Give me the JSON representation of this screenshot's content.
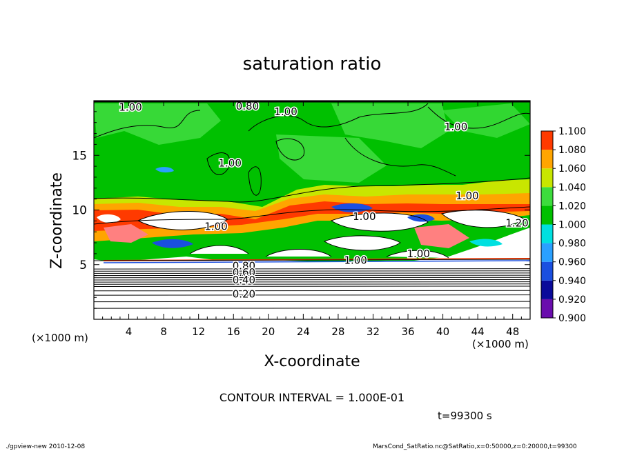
{
  "chart_data": {
    "type": "heatmap",
    "title": "saturation ratio",
    "xlabel": "X-coordinate",
    "ylabel": "Z-coordinate",
    "x_units": "(×1000 m)",
    "y_units": "(×1000 m)",
    "xlim": [
      0,
      50
    ],
    "ylim": [
      0,
      20
    ],
    "x_ticks": [
      4,
      8,
      12,
      16,
      20,
      24,
      28,
      32,
      36,
      40,
      44,
      48
    ],
    "y_ticks": [
      5,
      10,
      15
    ],
    "colorbar": {
      "levels": [
        0.9,
        0.92,
        0.94,
        0.96,
        0.98,
        1.0,
        1.02,
        1.04,
        1.06,
        1.08,
        1.1
      ],
      "labels": [
        "0.900",
        "0.920",
        "0.940",
        "0.960",
        "0.980",
        "1.000",
        "1.020",
        "1.040",
        "1.060",
        "1.080",
        "1.100"
      ],
      "colors": [
        "#6a0dad",
        "#0a0a9a",
        "#1a4fe0",
        "#2aa0ff",
        "#00e0e0",
        "#00c000",
        "#3ddc3d",
        "#c8e600",
        "#ffa500",
        "#ff3a00",
        "#ff8080"
      ]
    },
    "contour_labels": [
      {
        "text": "1.00",
        "x": 4.2,
        "y": 19.4
      },
      {
        "text": "0.80",
        "x": 17.6,
        "y": 19.5
      },
      {
        "text": "1.00",
        "x": 22.0,
        "y": 19.0
      },
      {
        "text": "1.00",
        "x": 41.5,
        "y": 17.6
      },
      {
        "text": "1.00",
        "x": 15.6,
        "y": 14.3
      },
      {
        "text": "1.00",
        "x": 14.0,
        "y": 8.5
      },
      {
        "text": "1.00",
        "x": 31.0,
        "y": 9.4
      },
      {
        "text": "1.00",
        "x": 42.8,
        "y": 11.3
      },
      {
        "text": "1.20",
        "x": 48.5,
        "y": 8.8
      },
      {
        "text": "1.00",
        "x": 30.0,
        "y": 5.4
      },
      {
        "text": "1.00",
        "x": 37.2,
        "y": 6.0
      },
      {
        "text": "0.80",
        "x": 17.2,
        "y": 4.9
      },
      {
        "text": "0.60",
        "x": 17.2,
        "y": 4.3
      },
      {
        "text": "0.40",
        "x": 17.2,
        "y": 3.6
      },
      {
        "text": "0.20",
        "x": 17.2,
        "y": 2.3
      }
    ],
    "contour_interval": "CONTOUR INTERVAL = 1.000E-01",
    "time": "t=99300 s",
    "footer_left": "./gpview-new   2010-12-08",
    "footer_right": "MarsCond_SatRatio.nc@SatRatio,x=0:50000,z=0:20000,t=99300"
  }
}
